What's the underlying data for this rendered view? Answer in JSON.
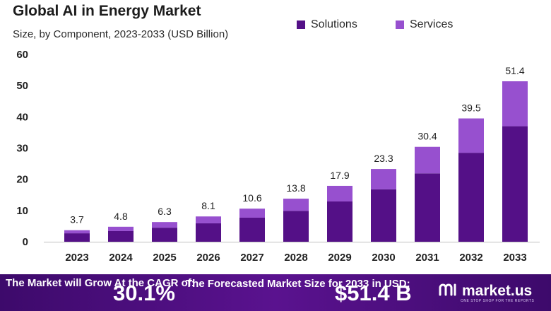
{
  "colors": {
    "solutions": "#541087",
    "services": "#9750cf",
    "footer_bg": "#4a0d7c"
  },
  "chart_data": {
    "type": "bar",
    "stacked": true,
    "title": "Global AI in Energy Market",
    "subtitle": "Size, by Component, 2023-2033 (USD Billion)",
    "categories": [
      "2023",
      "2024",
      "2025",
      "2026",
      "2027",
      "2028",
      "2029",
      "2030",
      "2031",
      "2032",
      "2033"
    ],
    "series": [
      {
        "name": "Solutions",
        "values": [
          2.7,
          3.4,
          4.5,
          5.9,
          7.7,
          9.9,
          12.9,
          16.8,
          21.9,
          28.5,
          37.0
        ]
      },
      {
        "name": "Services",
        "values": [
          1.0,
          1.4,
          1.8,
          2.2,
          2.9,
          3.9,
          5.0,
          6.5,
          8.5,
          11.0,
          14.4
        ]
      }
    ],
    "totals": [
      "3.7",
      "4.8",
      "6.3",
      "8.1",
      "10.6",
      "13.8",
      "17.9",
      "23.3",
      "30.4",
      "39.5",
      "51.4"
    ],
    "ylim": [
      0,
      60
    ],
    "yticks": [
      0,
      10,
      20,
      30,
      40,
      50,
      60
    ],
    "xlabel": "",
    "ylabel": "",
    "legend_position": "top-right",
    "grid": false
  },
  "footer": {
    "cagr_lead": "The Market will Grow At the CAGR of:",
    "cagr_value": "30.1%",
    "forecast_label": "The Forecasted Market Size for 2033 in USD:",
    "forecast_value": "$51.4 B",
    "brand_name": "market.us",
    "brand_tagline": "ONE STOP SHOP FOR THE REPORTS",
    "brand_icon": "market-us-logo-icon"
  }
}
